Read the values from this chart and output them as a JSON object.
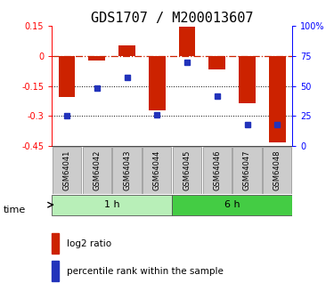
{
  "title": "GDS1707 / M200013607",
  "samples": [
    "GSM64041",
    "GSM64042",
    "GSM64043",
    "GSM64044",
    "GSM64045",
    "GSM64046",
    "GSM64047",
    "GSM64048"
  ],
  "log2_ratio": [
    -0.205,
    -0.02,
    0.055,
    -0.27,
    0.145,
    -0.065,
    -0.235,
    -0.43
  ],
  "percentile_rank": [
    25,
    48,
    57,
    26,
    70,
    42,
    18,
    18
  ],
  "groups": [
    {
      "label": "1 h",
      "indices": [
        0,
        1,
        2,
        3
      ],
      "color": "#b8efb8"
    },
    {
      "label": "6 h",
      "indices": [
        4,
        5,
        6,
        7
      ],
      "color": "#44cc44"
    }
  ],
  "ylim_left": [
    -0.45,
    0.15
  ],
  "yticks_left": [
    0.15,
    0.0,
    -0.15,
    -0.3,
    -0.45
  ],
  "ytick_labels_left": [
    "0.15",
    "0",
    "-0.15",
    "-0.3",
    "-0.45"
  ],
  "yticks_right_pct": [
    100,
    75,
    50,
    25,
    0
  ],
  "ytick_labels_right": [
    "100%",
    "75",
    "50",
    "25",
    "0"
  ],
  "bar_color": "#cc2200",
  "dot_color": "#2233bb",
  "hline_zero_color": "#cc2200",
  "hline_dotted_color": "#000000",
  "bar_width": 0.55,
  "dot_size": 5,
  "legend_labels": [
    "log2 ratio",
    "percentile rank within the sample"
  ],
  "time_label": "time",
  "background_color": "#ffffff",
  "sample_box_color": "#cccccc",
  "title_fontsize": 11,
  "tick_fontsize": 7,
  "sample_fontsize": 6,
  "time_fontsize": 8,
  "legend_fontsize": 7.5
}
